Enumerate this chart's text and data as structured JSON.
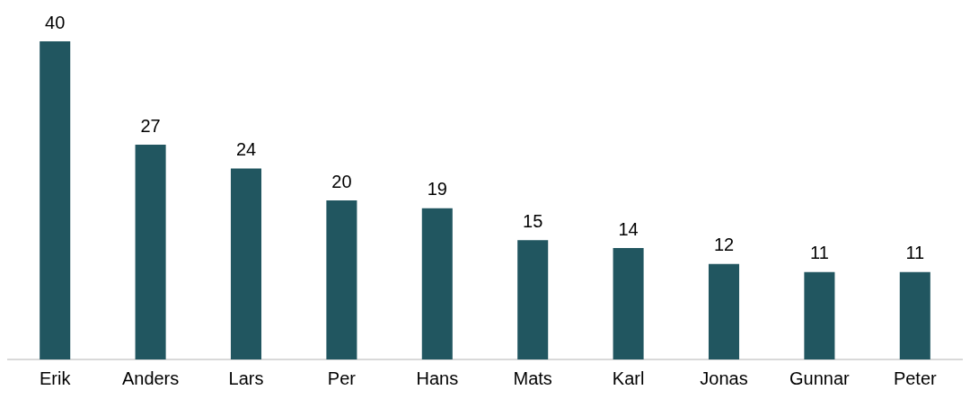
{
  "chart_data": {
    "type": "bar",
    "categories": [
      "Erik",
      "Anders",
      "Lars",
      "Per",
      "Hans",
      "Mats",
      "Karl",
      "Jonas",
      "Gunnar",
      "Peter"
    ],
    "values": [
      40,
      27,
      24,
      20,
      19,
      15,
      14,
      12,
      11,
      11
    ],
    "color": "#215660",
    "data_labels": true,
    "grid": false,
    "legend": false
  }
}
